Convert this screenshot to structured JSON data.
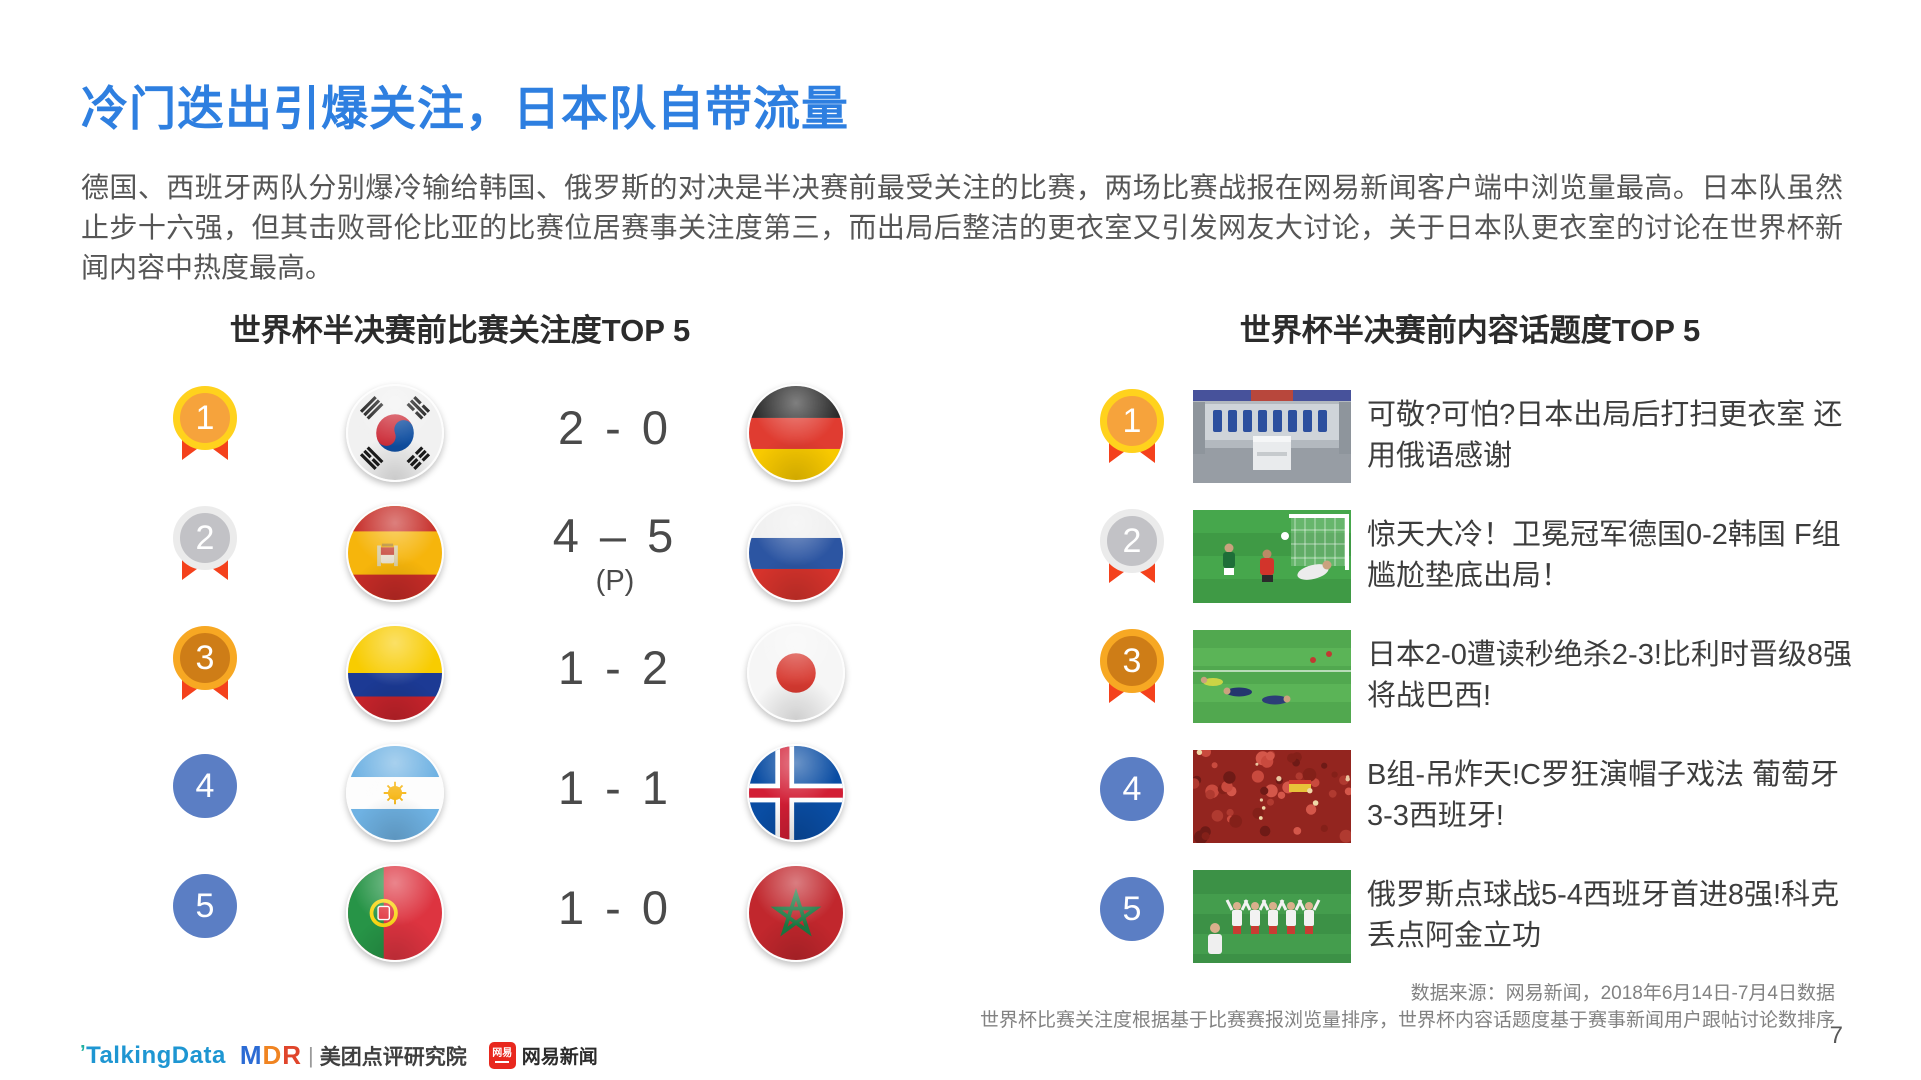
{
  "page": {
    "title": "冷门迭出引爆关注，日本队自带流量",
    "intro": "德国、西班牙两队分别爆冷输给韩国、俄罗斯的对决是半决赛前最受关注的比赛，两场比赛战报在网易新闻客户端中浏览量最高。日本队虽然止步十六强，但其击败哥伦比亚的比赛位居赛事关注度第三，而出局后整洁的更衣室又引发网友大讨论，关于日本队更衣室的讨论在世界杯新闻内容中热度最高。",
    "page_number": "7"
  },
  "colors": {
    "title_blue": "#2e7fe0",
    "ribbon_red": "#f4411c",
    "medal_gold_ring": "#ffd21d",
    "medal_gold_fill": "#f6a33c",
    "medal_silver_ring": "#ebebeb",
    "medal_silver_fill": "#c2c2c6",
    "medal_bronze_ring": "#f7a823",
    "medal_bronze_fill": "#ce7d17",
    "rank_plain_blue": "#5b7ec4"
  },
  "left_ranking": {
    "title": "世界杯半决赛前比赛关注度TOP 5",
    "items": [
      {
        "rank": "1",
        "medal": "gold",
        "team1_flag": "south-korea",
        "score": "2 - 0",
        "note": "",
        "team2_flag": "germany"
      },
      {
        "rank": "2",
        "medal": "silver",
        "team1_flag": "spain",
        "score": "4 – 5",
        "note": "(P)",
        "team2_flag": "russia"
      },
      {
        "rank": "3",
        "medal": "bronze",
        "team1_flag": "colombia",
        "score": "1 - 2",
        "note": "",
        "team2_flag": "japan"
      },
      {
        "rank": "4",
        "medal": "plain",
        "team1_flag": "argentina",
        "score": "1 - 1",
        "note": "",
        "team2_flag": "iceland"
      },
      {
        "rank": "5",
        "medal": "plain",
        "team1_flag": "portugal",
        "score": "1 - 0",
        "note": "",
        "team2_flag": "morocco"
      }
    ]
  },
  "right_ranking": {
    "title": "世界杯半决赛前内容话题度TOP 5",
    "items": [
      {
        "rank": "1",
        "medal": "gold",
        "thumbnail": "locker-room-photo",
        "headline": "可敬?可怕?日本出局后打扫更衣室 还用俄语感谢"
      },
      {
        "rank": "2",
        "medal": "silver",
        "thumbnail": "korea-germany-match-photo",
        "headline": "惊天大冷！卫冕冠军德国0-2韩国 F组尴尬垫底出局！"
      },
      {
        "rank": "3",
        "medal": "bronze",
        "thumbnail": "japan-belgium-match-photo",
        "headline": "日本2-0遭读秒绝杀2-3!比利时晋级8强将战巴西!"
      },
      {
        "rank": "4",
        "medal": "plain",
        "thumbnail": "portugal-spain-fans-photo",
        "headline": "B组-吊炸天!C罗狂演帽子戏法 葡萄牙3-3西班牙!"
      },
      {
        "rank": "5",
        "medal": "plain",
        "thumbnail": "russia-celebration-photo",
        "headline": "俄罗斯点球战5-4西班牙首进8强!科克丢点阿金立功"
      }
    ]
  },
  "footer": {
    "source_line1": "数据来源：网易新闻，2018年6月14日-7月4日数据",
    "source_line2": "世界杯比赛关注度根据基于比赛赛报浏览量排序，世界杯内容话题度基于赛事新闻用户跟帖讨论数排序",
    "logos": {
      "talkingdata": "TalkingData",
      "mdr_m": "M",
      "mdr_d": "D",
      "mdr_r": "R",
      "separator": "|",
      "meituan": "美团点评研究院",
      "netease_badge": "网易",
      "netease": "网易新闻"
    }
  }
}
